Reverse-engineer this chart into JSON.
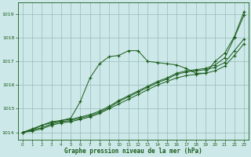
{
  "xlabel": "Graphe pression niveau de la mer (hPa)",
  "xlim": [
    -0.5,
    23.5
  ],
  "ylim": [
    1013.7,
    1019.5
  ],
  "yticks": [
    1014,
    1015,
    1016,
    1017,
    1018,
    1019
  ],
  "xticks": [
    0,
    1,
    2,
    3,
    4,
    5,
    6,
    7,
    8,
    9,
    10,
    11,
    12,
    13,
    14,
    15,
    16,
    17,
    18,
    19,
    20,
    21,
    22,
    23
  ],
  "bg_color": "#cce8e8",
  "grid_color": "#99bbbb",
  "line_color": "#1a5c1a",
  "line1_x": [
    0,
    1,
    2,
    3,
    4,
    5,
    6,
    7,
    8,
    9,
    10,
    11,
    12,
    13,
    14,
    15,
    16,
    17,
    18,
    19,
    20,
    21,
    22,
    23
  ],
  "line1_y": [
    1014.0,
    1014.1,
    1014.3,
    1014.4,
    1014.5,
    1014.6,
    1015.3,
    1016.3,
    1016.9,
    1017.2,
    1017.25,
    1017.45,
    1017.45,
    1017.0,
    1016.95,
    1016.9,
    1016.85,
    1016.7,
    1016.5,
    1016.5,
    1017.0,
    1017.35,
    1018.05,
    1019.1
  ],
  "line2_x": [
    0,
    1,
    2,
    3,
    4,
    5,
    6,
    7,
    8,
    9,
    10,
    11,
    12,
    13,
    14,
    15,
    16,
    17,
    18,
    19,
    20,
    21,
    22,
    23
  ],
  "line2_y": [
    1014.0,
    1014.15,
    1014.3,
    1014.45,
    1014.5,
    1014.55,
    1014.65,
    1014.75,
    1014.9,
    1015.1,
    1015.35,
    1015.55,
    1015.75,
    1015.95,
    1016.15,
    1016.3,
    1016.5,
    1016.6,
    1016.65,
    1016.7,
    1016.85,
    1017.15,
    1018.0,
    1018.95
  ],
  "line3_x": [
    0,
    1,
    2,
    3,
    4,
    5,
    6,
    7,
    8,
    9,
    10,
    11,
    12,
    13,
    14,
    15,
    16,
    17,
    18,
    19,
    20,
    21,
    22,
    23
  ],
  "line3_y": [
    1014.0,
    1014.1,
    1014.2,
    1014.35,
    1014.45,
    1014.5,
    1014.6,
    1014.7,
    1014.85,
    1015.05,
    1015.3,
    1015.5,
    1015.7,
    1015.9,
    1016.1,
    1016.25,
    1016.45,
    1016.55,
    1016.6,
    1016.65,
    1016.75,
    1016.95,
    1017.45,
    1017.95
  ],
  "line4_x": [
    0,
    1,
    2,
    3,
    4,
    5,
    6,
    7,
    8,
    9,
    10,
    11,
    12,
    13,
    14,
    15,
    16,
    17,
    18,
    19,
    20,
    21,
    22,
    23
  ],
  "line4_y": [
    1014.0,
    1014.05,
    1014.15,
    1014.3,
    1014.4,
    1014.45,
    1014.55,
    1014.65,
    1014.8,
    1015.0,
    1015.2,
    1015.4,
    1015.6,
    1015.8,
    1016.0,
    1016.15,
    1016.3,
    1016.4,
    1016.45,
    1016.5,
    1016.6,
    1016.8,
    1017.25,
    1017.75
  ]
}
